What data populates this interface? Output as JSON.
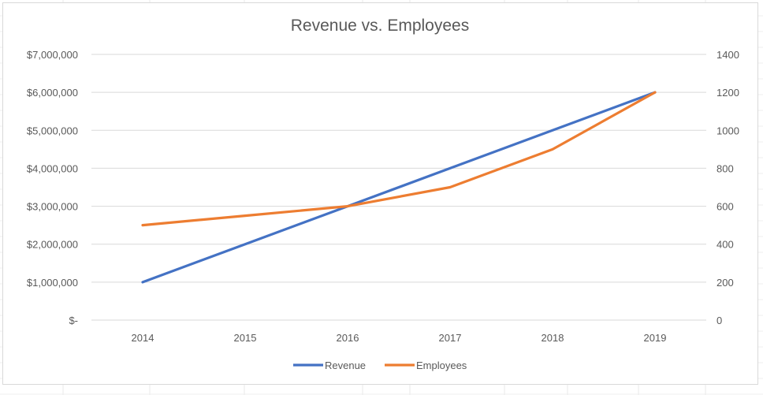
{
  "chart_data": {
    "type": "line",
    "title": "Revenue vs. Employees",
    "categories": [
      "2014",
      "2015",
      "2016",
      "2017",
      "2018",
      "2019"
    ],
    "series": [
      {
        "name": "Revenue",
        "axis": "left",
        "color": "#4472c4",
        "values": [
          1000000,
          2000000,
          3000000,
          4000000,
          5000000,
          6000000
        ]
      },
      {
        "name": "Employees",
        "axis": "right",
        "color": "#ed7d31",
        "values": [
          500,
          550,
          600,
          700,
          900,
          1200
        ]
      }
    ],
    "y_left": {
      "range": [
        0,
        7000000
      ],
      "ticks": [
        0,
        1000000,
        2000000,
        3000000,
        4000000,
        5000000,
        6000000,
        7000000
      ],
      "tick_labels": [
        "$-",
        "$1,000,000",
        "$2,000,000",
        "$3,000,000",
        "$4,000,000",
        "$5,000,000",
        "$6,000,000",
        "$7,000,000"
      ]
    },
    "y_right": {
      "range": [
        0,
        1400
      ],
      "ticks": [
        0,
        200,
        400,
        600,
        800,
        1000,
        1200,
        1400
      ],
      "tick_labels": [
        "0",
        "200",
        "400",
        "600",
        "800",
        "1000",
        "1200",
        "1400"
      ]
    },
    "grid": true,
    "legend": "bottom"
  }
}
